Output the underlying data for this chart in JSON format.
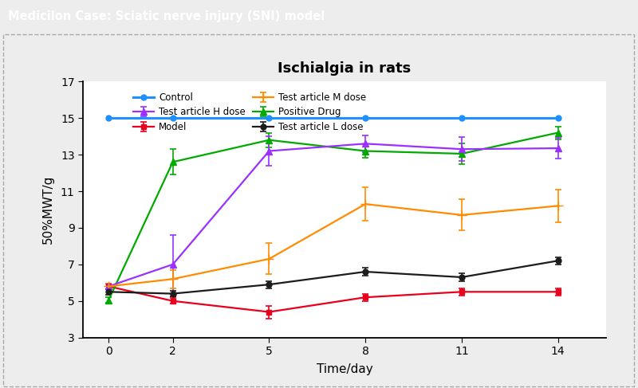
{
  "title": "Ischialgia in rats",
  "xlabel": "Time/day",
  "ylabel": "50%MWT/g",
  "header_text": "Medicilon Case: Sciatic nerve injury (SNI) model",
  "header_bg": "#6B3FA0",
  "header_text_color": "#FFFFFF",
  "x": [
    0,
    2,
    5,
    8,
    11,
    14
  ],
  "series": {
    "Control": {
      "y": [
        15.0,
        15.0,
        15.0,
        15.0,
        15.0,
        15.0
      ],
      "yerr": [
        0.0,
        0.0,
        0.0,
        0.0,
        0.0,
        0.0
      ],
      "color": "#1E90FF",
      "marker": "o",
      "linewidth": 2.2,
      "markersize": 5
    },
    "Model": {
      "y": [
        5.8,
        5.0,
        4.4,
        5.2,
        5.5,
        5.5
      ],
      "yerr": [
        0.15,
        0.15,
        0.35,
        0.2,
        0.2,
        0.2
      ],
      "color": "#E8001C",
      "marker": "s",
      "linewidth": 1.6,
      "markersize": 5
    },
    "Positive Drug": {
      "y": [
        5.05,
        12.6,
        13.8,
        13.2,
        13.05,
        14.2
      ],
      "yerr": [
        0.15,
        0.7,
        0.4,
        0.35,
        0.55,
        0.35
      ],
      "color": "#00AA00",
      "marker": "^",
      "linewidth": 1.6,
      "markersize": 6
    },
    "Test article H dose": {
      "y": [
        5.8,
        7.0,
        13.2,
        13.6,
        13.3,
        13.35
      ],
      "yerr": [
        0.15,
        1.6,
        0.8,
        0.45,
        0.65,
        0.55
      ],
      "color": "#9B30FF",
      "marker": "^",
      "linewidth": 1.6,
      "markersize": 6
    },
    "Test article M dose": {
      "y": [
        5.8,
        6.2,
        7.3,
        10.3,
        9.7,
        10.2
      ],
      "yerr": [
        0.15,
        0.5,
        0.85,
        0.9,
        0.85,
        0.9
      ],
      "color": "#FF8C00",
      "marker": "+",
      "linewidth": 1.6,
      "markersize": 8
    },
    "Test article L dose": {
      "y": [
        5.5,
        5.4,
        5.9,
        6.6,
        6.3,
        7.2
      ],
      "yerr": [
        0.15,
        0.15,
        0.2,
        0.2,
        0.2,
        0.2
      ],
      "color": "#1C1C1C",
      "marker": "o",
      "linewidth": 1.6,
      "markersize": 5
    }
  },
  "ylim": [
    3,
    17
  ],
  "yticks": [
    3,
    5,
    7,
    9,
    11,
    13,
    15,
    17
  ],
  "xticks": [
    0,
    2,
    5,
    8,
    11,
    14
  ],
  "legend_col1": [
    "Control",
    "Model",
    "Positive Drug"
  ],
  "legend_col2": [
    "Test article H dose",
    "Test article M dose",
    "Test article L dose"
  ],
  "outer_bg": "#EDEDED",
  "inner_bg": "#FFFFFF",
  "plot_bg": "#FFFFFF",
  "border_color": "#AAAAAA"
}
